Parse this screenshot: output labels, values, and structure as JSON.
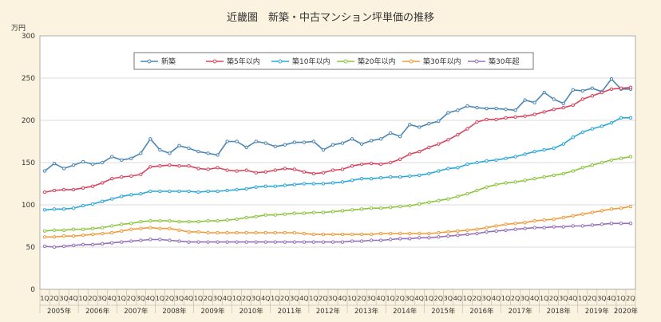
{
  "chart_data": {
    "type": "line",
    "title": "近畿圏　新築・中古マンション坪単価の推移",
    "unit_label": "万円",
    "ylim": [
      0,
      300
    ],
    "yticks": [
      0,
      50,
      100,
      150,
      200,
      250,
      300
    ],
    "grid": true,
    "legend_position": "top",
    "quarter_labels": [
      "1Q",
      "2Q",
      "3Q",
      "4Q"
    ],
    "years": [
      "2005年",
      "2006年",
      "2007年",
      "2008年",
      "2009年",
      "2010年",
      "2011年",
      "2012年",
      "2013年",
      "2014年",
      "2015年",
      "2016年",
      "2017年",
      "2018年",
      "2019年",
      "2020年"
    ],
    "x_count": 62,
    "series": [
      {
        "name": "新築",
        "color": "#4a86b4",
        "values": [
          140,
          149,
          143,
          147,
          151,
          148,
          150,
          157,
          153,
          155,
          161,
          178,
          165,
          161,
          170,
          167,
          163,
          161,
          159,
          175,
          175,
          168,
          175,
          173,
          169,
          171,
          174,
          174,
          175,
          165,
          171,
          173,
          178,
          172,
          176,
          178,
          185,
          181,
          195,
          192,
          196,
          199,
          209,
          212,
          217,
          215,
          214,
          214,
          213,
          212,
          224,
          221,
          233,
          225,
          220,
          236,
          235,
          238,
          234,
          249,
          237,
          237
        ]
      },
      {
        "name": "築5年以内",
        "color": "#d9445d",
        "values": [
          115,
          117,
          118,
          118,
          120,
          122,
          126,
          131,
          133,
          134,
          136,
          145,
          146,
          147,
          146,
          146,
          143,
          142,
          144,
          141,
          140,
          141,
          138,
          139,
          141,
          143,
          142,
          139,
          137,
          138,
          141,
          142,
          146,
          148,
          149,
          148,
          150,
          154,
          160,
          163,
          168,
          172,
          177,
          183,
          190,
          198,
          201,
          201,
          203,
          204,
          205,
          207,
          210,
          213,
          215,
          218,
          225,
          229,
          233,
          237,
          238,
          239
        ]
      },
      {
        "name": "築10年以内",
        "color": "#2aa7d9",
        "values": [
          94,
          95,
          95,
          96,
          99,
          101,
          104,
          107,
          110,
          112,
          113,
          116,
          116,
          116,
          116,
          116,
          115,
          116,
          116,
          117,
          118,
          119,
          121,
          122,
          122,
          123,
          124,
          125,
          125,
          125,
          126,
          127,
          129,
          131,
          131,
          132,
          133,
          133,
          134,
          135,
          137,
          140,
          143,
          144,
          148,
          150,
          152,
          153,
          155,
          157,
          160,
          163,
          165,
          167,
          172,
          180,
          186,
          190,
          193,
          197,
          203,
          203
        ]
      },
      {
        "name": "築20年以内",
        "color": "#8cc63f",
        "values": [
          69,
          70,
          70,
          71,
          71,
          72,
          73,
          75,
          77,
          78,
          80,
          81,
          81,
          81,
          80,
          80,
          80,
          81,
          81,
          82,
          83,
          85,
          86,
          88,
          88,
          89,
          90,
          90,
          91,
          91,
          92,
          93,
          94,
          95,
          96,
          96,
          97,
          98,
          99,
          101,
          103,
          105,
          107,
          110,
          113,
          117,
          121,
          124,
          126,
          127,
          129,
          131,
          133,
          135,
          137,
          140,
          144,
          147,
          150,
          153,
          155,
          157
        ]
      },
      {
        "name": "築30年以内",
        "color": "#f29a38",
        "values": [
          62,
          62,
          63,
          63,
          64,
          65,
          66,
          67,
          69,
          71,
          72,
          73,
          72,
          72,
          70,
          68,
          68,
          67,
          67,
          67,
          67,
          67,
          67,
          67,
          67,
          67,
          67,
          66,
          65,
          65,
          65,
          65,
          65,
          65,
          65,
          66,
          66,
          66,
          66,
          66,
          66,
          67,
          68,
          69,
          70,
          71,
          73,
          75,
          77,
          78,
          79,
          81,
          82,
          83,
          85,
          87,
          89,
          91,
          93,
          95,
          96,
          98
        ]
      },
      {
        "name": "築30年超",
        "color": "#9470b8",
        "values": [
          51,
          50,
          51,
          52,
          53,
          53,
          54,
          55,
          56,
          57,
          58,
          59,
          59,
          58,
          57,
          56,
          56,
          56,
          56,
          56,
          56,
          56,
          56,
          56,
          56,
          56,
          56,
          56,
          56,
          56,
          56,
          56,
          57,
          57,
          58,
          58,
          59,
          60,
          60,
          61,
          61,
          62,
          63,
          64,
          65,
          66,
          68,
          69,
          70,
          71,
          72,
          73,
          73,
          74,
          74,
          75,
          75,
          76,
          77,
          78,
          78,
          78
        ]
      }
    ]
  }
}
